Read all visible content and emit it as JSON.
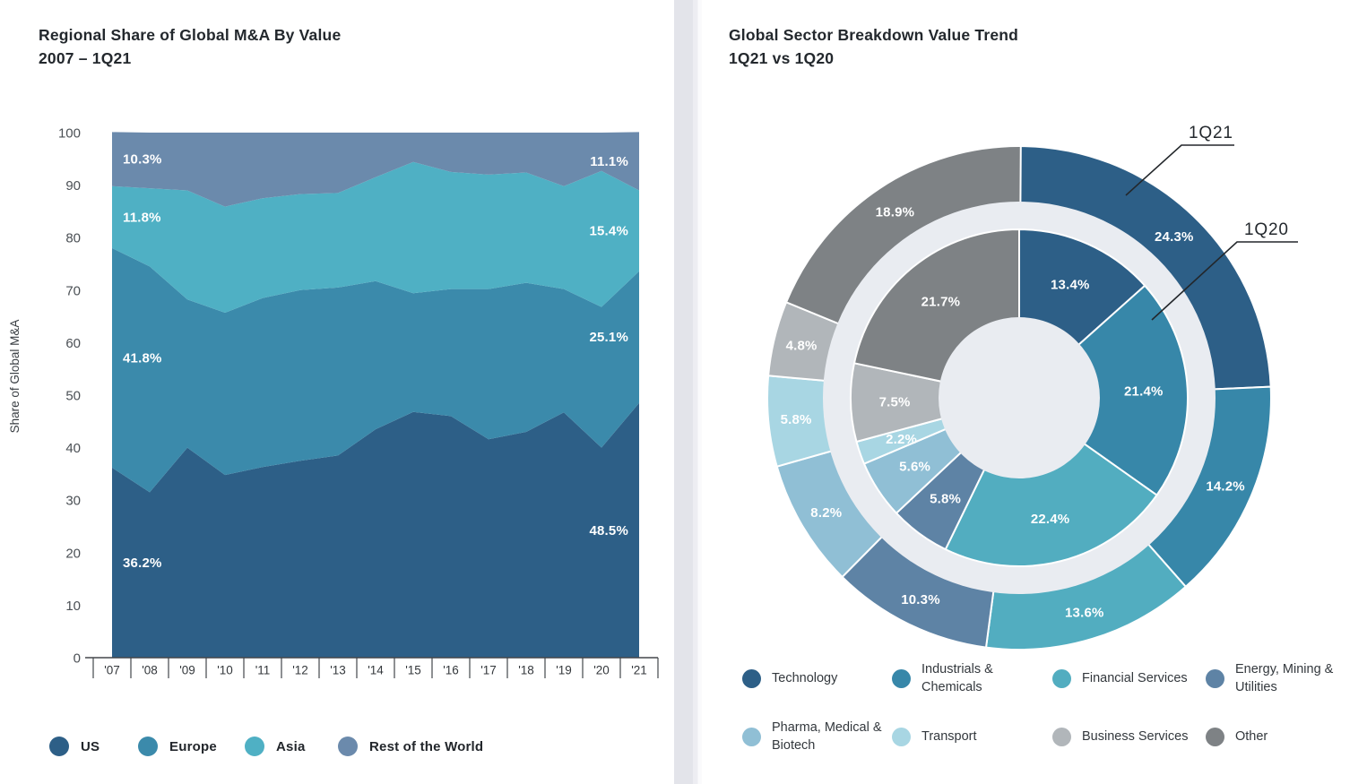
{
  "page": {
    "background": "#ffffff",
    "divider_color": "#e3e4ea"
  },
  "chart_data": [
    {
      "type": "area",
      "stacked": true,
      "title": "Regional Share of Global M&A By Value",
      "subtitle": "2007 – 1Q21",
      "ylabel": "Share of Global M&A",
      "ylim": [
        0,
        100
      ],
      "y_ticks": [
        0,
        10,
        20,
        30,
        40,
        50,
        60,
        70,
        80,
        90,
        100
      ],
      "grid": false,
      "legend_position": "bottom",
      "categories": [
        "'07",
        "'08",
        "'09",
        "'10",
        "'11",
        "'12",
        "'13",
        "'14",
        "'15",
        "'16",
        "'17",
        "'18",
        "'19",
        "'20",
        "'21"
      ],
      "series": [
        {
          "name": "US",
          "color": "#2d5f87",
          "values": [
            36.2,
            31.5,
            40.0,
            34.8,
            36.3,
            37.5,
            38.5,
            43.5,
            46.8,
            46.0,
            41.6,
            43.0,
            46.7,
            40.0,
            48.5
          ],
          "start_label": "36.2%",
          "end_label": "48.5%"
        },
        {
          "name": "Europe",
          "color": "#3b8aab",
          "values": [
            41.8,
            43.0,
            28.2,
            30.9,
            32.2,
            32.5,
            32.0,
            28.2,
            22.6,
            24.2,
            28.6,
            28.4,
            23.5,
            26.8,
            25.1
          ],
          "start_label": "41.8%",
          "end_label": "25.1%"
        },
        {
          "name": "Asia",
          "color": "#4fb0c4",
          "values": [
            11.8,
            14.9,
            20.8,
            20.2,
            19.0,
            18.3,
            18.0,
            19.8,
            25.0,
            22.3,
            21.8,
            21.0,
            19.6,
            25.9,
            15.4
          ],
          "start_label": "11.8%",
          "end_label": "15.4%"
        },
        {
          "name": "Rest of the World",
          "color": "#6b8aac",
          "values": [
            10.3,
            10.6,
            11.0,
            14.1,
            12.5,
            11.7,
            11.5,
            8.5,
            5.6,
            7.5,
            8.0,
            7.6,
            10.2,
            7.3,
            11.1
          ],
          "start_label": "10.3%",
          "end_label": "11.1%"
        }
      ]
    },
    {
      "type": "donut",
      "title": "Global Sector Breakdown Value Trend",
      "subtitle": "1Q21 vs 1Q20",
      "direction": "clockwise",
      "start_angle_deg": 0,
      "hole_color": "#e9ecf1",
      "categories": [
        "Technology",
        "Industrials & Chemicals",
        "Financial Services",
        "Energy, Mining & Utilities",
        "Pharma, Medical & Biotech",
        "Transport",
        "Business Services",
        "Other"
      ],
      "colors": [
        "#2d5f87",
        "#3787a9",
        "#52adc0",
        "#5e83a5",
        "#90bfd5",
        "#a8d6e3",
        "#b1b6ba",
        "#7e8285"
      ],
      "rings": [
        {
          "name": "1Q21",
          "position": "outer",
          "values": [
            24.3,
            14.2,
            13.6,
            10.3,
            8.2,
            5.8,
            4.8,
            18.9
          ],
          "labels": [
            "24.3%",
            "14.2%",
            "13.6%",
            "10.3%",
            "8.2%",
            "5.8%",
            "4.8%",
            "18.9%"
          ]
        },
        {
          "name": "1Q20",
          "position": "inner",
          "values": [
            13.4,
            21.4,
            22.4,
            5.8,
            5.6,
            2.2,
            7.5,
            21.7
          ],
          "labels": [
            "13.4%",
            "21.4%",
            "22.4%",
            "5.8%",
            "5.6%",
            "2.2%",
            "7.5%",
            "21.7%"
          ]
        }
      ],
      "callouts": [
        {
          "text": "1Q21",
          "target": "outer-ring"
        },
        {
          "text": "1Q20",
          "target": "inner-ring"
        }
      ]
    }
  ]
}
